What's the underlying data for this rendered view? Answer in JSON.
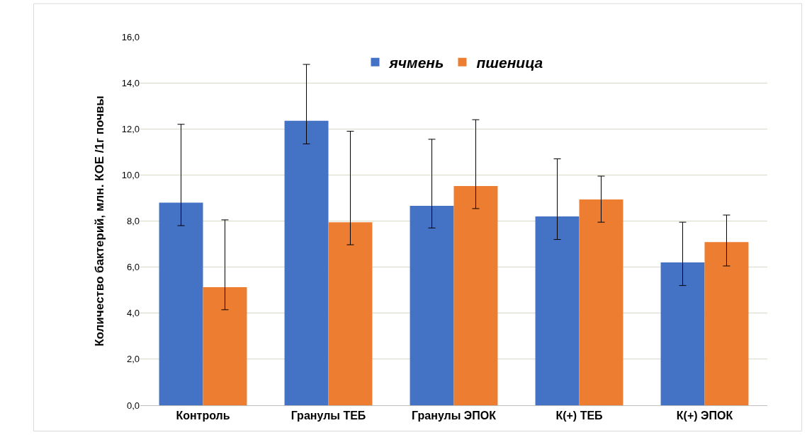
{
  "chart_data": {
    "type": "bar",
    "ylabel": "Количество бактерий, млн. КОЕ /1г почвы",
    "categories": [
      "Контроль",
      "Гранулы ТЕБ",
      "Гранулы ЭПОК",
      "К(+) ТЕБ",
      "К(+) ЭПОК"
    ],
    "series": [
      {
        "name": "ячмень",
        "color": "#4472c4",
        "values": [
          8.8,
          12.35,
          8.66,
          8.2,
          6.2
        ],
        "errors": [
          [
            7.8,
            12.2
          ],
          [
            11.35,
            14.8
          ],
          [
            7.7,
            11.55
          ],
          [
            7.2,
            10.7
          ],
          [
            5.2,
            7.95
          ]
        ]
      },
      {
        "name": "пшеница",
        "color": "#ed7d31",
        "values": [
          5.13,
          7.95,
          9.52,
          8.94,
          7.09
        ],
        "errors": [
          [
            4.15,
            8.05
          ],
          [
            6.97,
            11.9
          ],
          [
            8.54,
            12.4
          ],
          [
            7.95,
            9.95
          ],
          [
            6.05,
            8.26
          ]
        ]
      }
    ],
    "ylim": [
      0,
      16
    ],
    "yticks": [
      {
        "value": 0,
        "label": "0,0"
      },
      {
        "value": 2,
        "label": "2,0"
      },
      {
        "value": 4,
        "label": "4,0"
      },
      {
        "value": 6,
        "label": "6,0"
      },
      {
        "value": 8,
        "label": "8,0"
      },
      {
        "value": 10,
        "label": "10,0"
      },
      {
        "value": 12,
        "label": "12,0"
      },
      {
        "value": 14,
        "label": "14,0"
      },
      {
        "value": 16,
        "label": "16,0"
      }
    ],
    "grid": "y",
    "legend": "top"
  }
}
